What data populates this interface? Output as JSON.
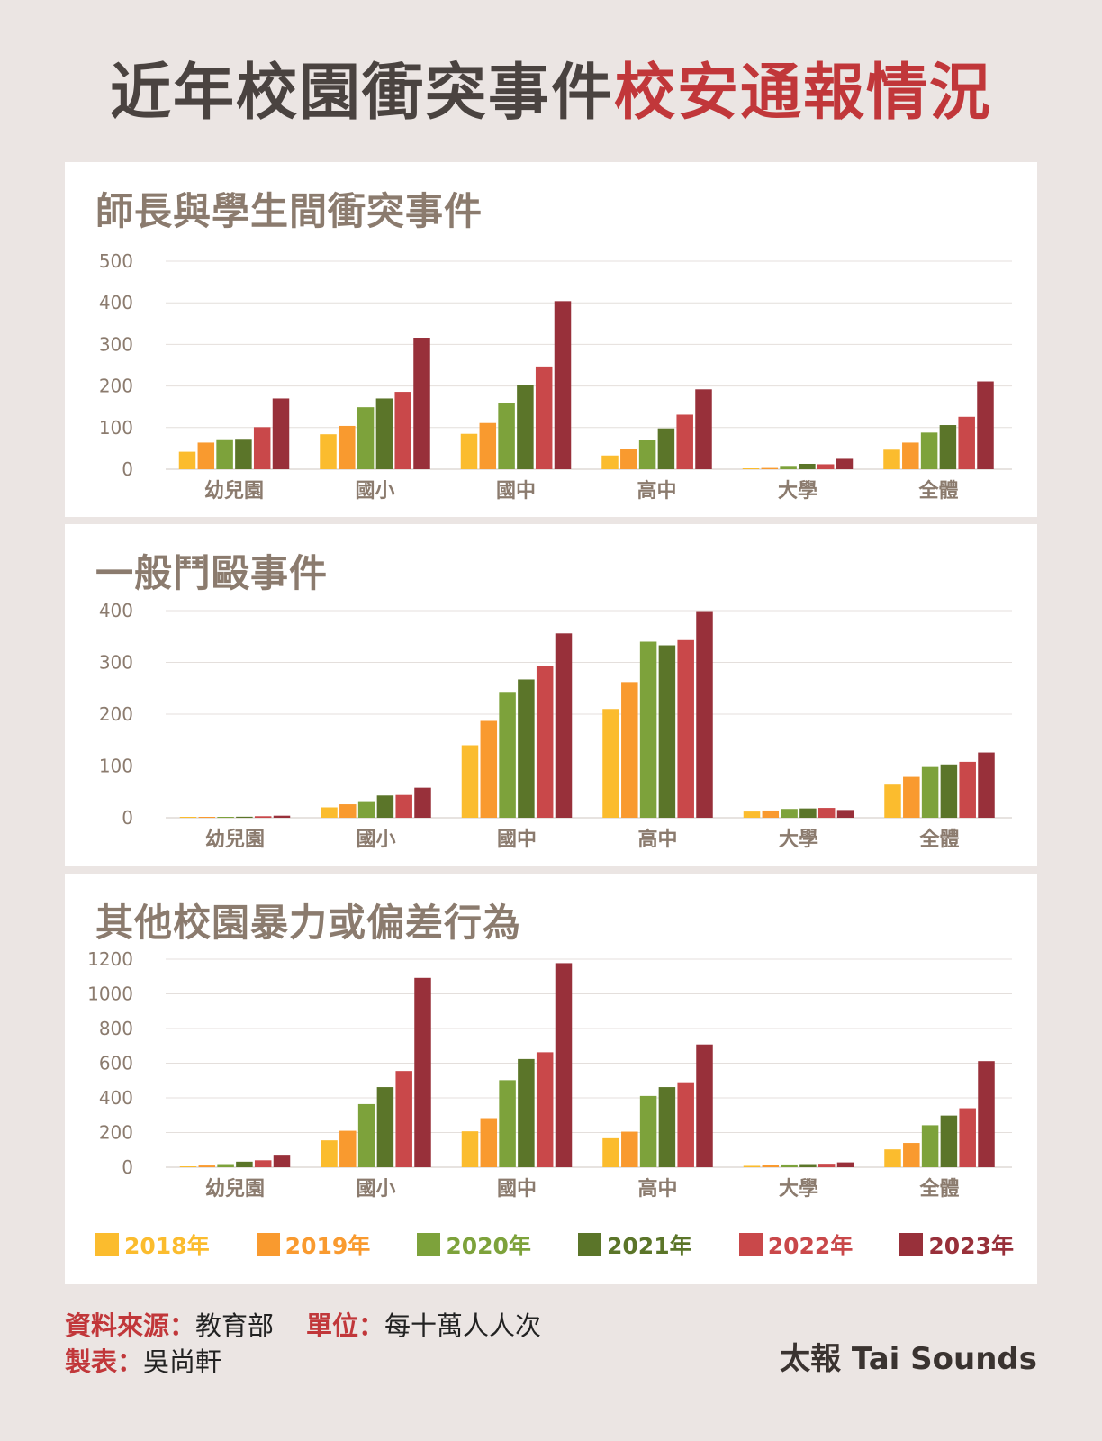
{
  "header": {
    "title_part1": "近年校園衝突事件",
    "title_part2": "校安通報情況"
  },
  "colors": {
    "series": [
      "#fbbc2e",
      "#f99a2f",
      "#7da23b",
      "#5b7529",
      "#c9484a",
      "#98303a"
    ],
    "title_dark": "#4a4340",
    "title_red": "#c1373a",
    "panel_title": "#8b7b6e",
    "axis_text": "#8b7b6e",
    "background": "#ebe5e3"
  },
  "chart_data": [
    {
      "type": "bar",
      "title": "師長與學生間衝突事件",
      "categories": [
        "幼兒園",
        "國小",
        "國中",
        "高中",
        "大學",
        "全體"
      ],
      "series": [
        {
          "name": "2018年",
          "values": [
            42,
            84,
            85,
            33,
            2,
            47
          ]
        },
        {
          "name": "2019年",
          "values": [
            64,
            104,
            111,
            49,
            3,
            64
          ]
        },
        {
          "name": "2020年",
          "values": [
            72,
            149,
            159,
            70,
            8,
            88
          ]
        },
        {
          "name": "2021年",
          "values": [
            73,
            170,
            203,
            98,
            13,
            106
          ]
        },
        {
          "name": "2022年",
          "values": [
            101,
            186,
            247,
            131,
            12,
            126
          ]
        },
        {
          "name": "2023年",
          "values": [
            170,
            316,
            404,
            192,
            25,
            211
          ]
        }
      ],
      "yticks": [
        0,
        100,
        200,
        300,
        400,
        500
      ],
      "ylim": [
        0,
        500
      ],
      "grid": true
    },
    {
      "type": "bar",
      "title": "一般鬥毆事件",
      "categories": [
        "幼兒園",
        "國小",
        "國中",
        "高中",
        "大學",
        "全體"
      ],
      "series": [
        {
          "name": "2018年",
          "values": [
            1,
            20,
            140,
            210,
            12,
            64
          ]
        },
        {
          "name": "2019年",
          "values": [
            1,
            26,
            187,
            262,
            14,
            79
          ]
        },
        {
          "name": "2020年",
          "values": [
            1,
            32,
            243,
            340,
            17,
            98
          ]
        },
        {
          "name": "2021年",
          "values": [
            2,
            43,
            267,
            333,
            18,
            103
          ]
        },
        {
          "name": "2022年",
          "values": [
            3,
            44,
            293,
            343,
            19,
            108
          ]
        },
        {
          "name": "2023年",
          "values": [
            4,
            58,
            356,
            399,
            15,
            126
          ]
        }
      ],
      "yticks": [
        0,
        100,
        200,
        300,
        400
      ],
      "ylim": [
        0,
        400
      ],
      "grid": true
    },
    {
      "type": "bar",
      "title": "其他校園暴力或偏差行為",
      "categories": [
        "幼兒園",
        "國小",
        "國中",
        "高中",
        "大學",
        "全體"
      ],
      "series": [
        {
          "name": "2018年",
          "values": [
            5,
            155,
            207,
            167,
            8,
            103
          ]
        },
        {
          "name": "2019年",
          "values": [
            10,
            210,
            283,
            205,
            12,
            140
          ]
        },
        {
          "name": "2020年",
          "values": [
            18,
            364,
            502,
            411,
            16,
            242
          ]
        },
        {
          "name": "2021年",
          "values": [
            32,
            462,
            624,
            462,
            18,
            298
          ]
        },
        {
          "name": "2022年",
          "values": [
            40,
            555,
            663,
            490,
            20,
            340
          ]
        },
        {
          "name": "2023年",
          "values": [
            72,
            1092,
            1177,
            708,
            28,
            612
          ]
        }
      ],
      "yticks": [
        0,
        200,
        400,
        600,
        800,
        1000,
        1200
      ],
      "ylim": [
        0,
        1200
      ],
      "grid": true
    }
  ],
  "legend": {
    "items": [
      "2018年",
      "2019年",
      "2020年",
      "2021年",
      "2022年",
      "2023年"
    ]
  },
  "footer": {
    "source_label": "資料來源：",
    "source_value": "教育部",
    "unit_label": "單位：",
    "unit_value": "每十萬人人次",
    "author_label": "製表：",
    "author_value": "吳尚軒",
    "brand": "太報 Tai Sounds"
  }
}
